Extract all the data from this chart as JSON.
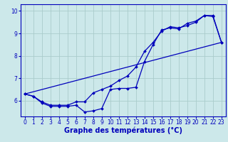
{
  "xlabel": "Graphe des températures (°C)",
  "background_color": "#cce8ea",
  "grid_color": "#aacccc",
  "line_color": "#0000bb",
  "xlim": [
    -0.5,
    23.5
  ],
  "ylim": [
    5.3,
    10.3
  ],
  "xticks": [
    0,
    1,
    2,
    3,
    4,
    5,
    6,
    7,
    8,
    9,
    10,
    11,
    12,
    13,
    14,
    15,
    16,
    17,
    18,
    19,
    20,
    21,
    22,
    23
  ],
  "yticks": [
    6,
    7,
    8,
    9,
    10
  ],
  "series1_x": [
    0,
    1,
    2,
    3,
    4,
    5,
    6,
    7,
    8,
    9,
    10,
    11,
    12,
    13,
    14,
    15,
    16,
    17,
    18,
    19,
    20,
    21,
    22,
    23
  ],
  "series1_y": [
    6.3,
    6.2,
    5.9,
    5.75,
    5.75,
    5.75,
    5.8,
    5.5,
    5.55,
    5.65,
    6.5,
    6.55,
    6.55,
    6.6,
    7.75,
    8.5,
    9.15,
    9.25,
    9.2,
    9.45,
    9.55,
    9.8,
    9.75,
    8.6
  ],
  "series2_x": [
    0,
    1,
    2,
    3,
    4,
    5,
    6,
    7,
    8,
    9,
    10,
    11,
    12,
    13,
    14,
    15,
    16,
    17,
    18,
    19,
    20,
    21,
    22,
    23
  ],
  "series2_y": [
    6.3,
    6.2,
    5.95,
    5.8,
    5.8,
    5.8,
    5.95,
    5.95,
    6.35,
    6.5,
    6.65,
    6.9,
    7.1,
    7.5,
    8.2,
    8.6,
    9.1,
    9.3,
    9.25,
    9.35,
    9.5,
    9.8,
    9.8,
    8.6
  ],
  "series3_x": [
    0,
    23
  ],
  "series3_y": [
    6.3,
    8.6
  ],
  "markersize": 2,
  "linewidth": 0.9,
  "xlabel_fontsize": 7,
  "tick_fontsize": 5.5
}
